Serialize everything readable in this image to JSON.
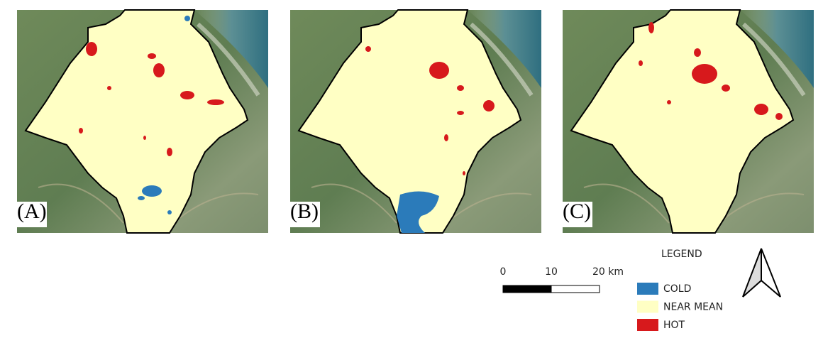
{
  "panels": [
    {
      "label": "(A)"
    },
    {
      "label": "(B)"
    },
    {
      "label": "(C)"
    }
  ],
  "scale_bar": {
    "labels": [
      "0",
      "10",
      "20 km"
    ]
  },
  "legend": {
    "title": "LEGEND",
    "items": [
      {
        "label": "COLD",
        "color": "#2b7bba"
      },
      {
        "label": "NEAR MEAN",
        "color": "#ffffc4"
      },
      {
        "label": "HOT",
        "color": "#d7191c"
      }
    ]
  }
}
